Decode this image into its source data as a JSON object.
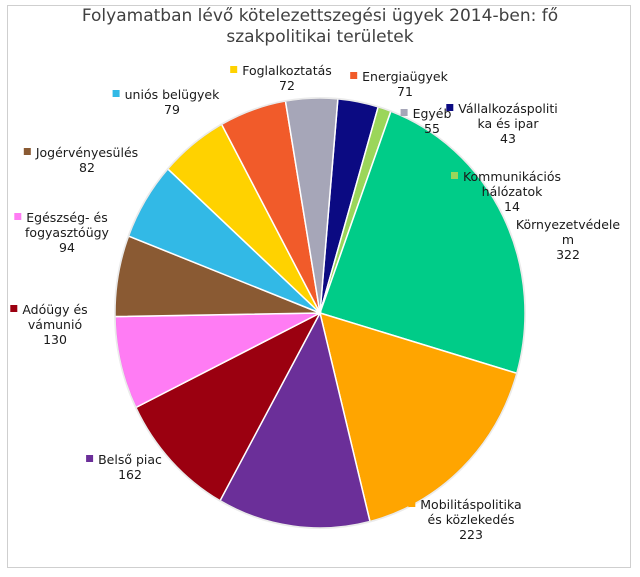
{
  "chart_data": {
    "type": "pie",
    "title_lines": [
      "Folyamatban lévő kötelezettszegési ügyek 2014-ben: fő",
      "szakpolitikai területek"
    ],
    "start_angle_deg": 5,
    "slices": [
      {
        "label_lines": [
          "Vállalkozáspoliti",
          "ka és ipar"
        ],
        "value": 43,
        "color": "#0b0a82"
      },
      {
        "label_lines": [
          "Kommunikációs",
          "hálózatok"
        ],
        "value": 14,
        "color": "#9bd65a"
      },
      {
        "label_lines": [
          "Környezetvédele",
          "m"
        ],
        "value": 322,
        "color": "#00cc88"
      },
      {
        "label_lines": [
          "Mobilitáspolitika",
          "és közlekedés"
        ],
        "value": 223,
        "color": "#ffa500"
      },
      {
        "label_lines": [
          "Belső piac"
        ],
        "value": 162,
        "color": "#6b2f99"
      },
      {
        "label_lines": [
          "Adóügy és",
          "vámunió"
        ],
        "value": 130,
        "color": "#9b0010"
      },
      {
        "label_lines": [
          "Egészség- és",
          "fogyasztóügy"
        ],
        "value": 94,
        "color": "#ff7cf4"
      },
      {
        "label_lines": [
          "Jogérvényesülés"
        ],
        "value": 82,
        "color": "#8a5a33"
      },
      {
        "label_lines": [
          "uniós belügyek"
        ],
        "value": 79,
        "color": "#32b9e6"
      },
      {
        "label_lines": [
          "Foglalkoztatás"
        ],
        "value": 72,
        "color": "#ffd200"
      },
      {
        "label_lines": [
          "Energiaügyek"
        ],
        "value": 71,
        "color": "#f15b2a"
      },
      {
        "label_lines": [
          "Egyéb"
        ],
        "value": 55,
        "color": "#a6a6b8"
      }
    ]
  }
}
